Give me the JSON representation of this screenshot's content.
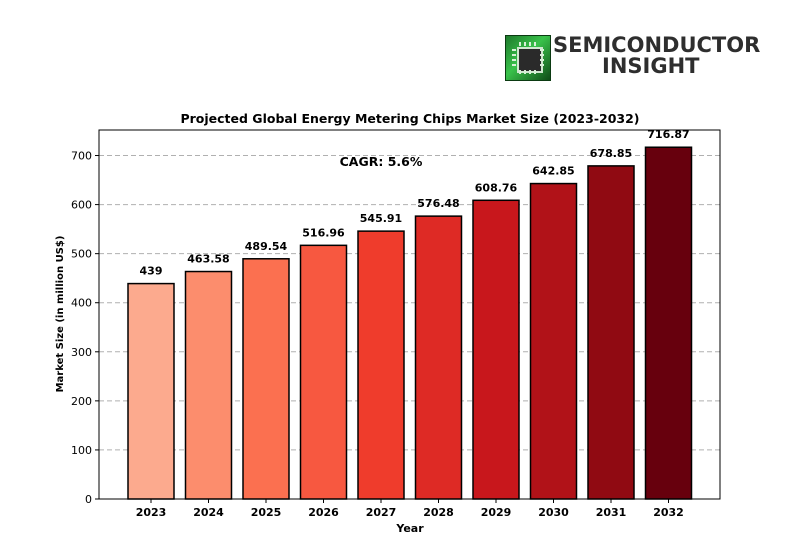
{
  "logo": {
    "icon": "microchip-icon",
    "line1": "SEMICONDUCTOR",
    "line2": "INSIGHT"
  },
  "chart_data": {
    "type": "bar",
    "title": "Projected Global Energy Metering Chips Market Size (2023-2032)",
    "xlabel": "Year",
    "ylabel": "Market Size (in million US$)",
    "annotation": "CAGR: 5.6%",
    "categories": [
      "2023",
      "2024",
      "2025",
      "2026",
      "2027",
      "2028",
      "2029",
      "2030",
      "2031",
      "2032"
    ],
    "values": [
      439,
      463.58,
      489.54,
      516.96,
      545.91,
      576.48,
      608.76,
      642.85,
      678.85,
      716.87
    ],
    "value_labels": [
      "439",
      "463.58",
      "489.54",
      "516.96",
      "545.91",
      "576.48",
      "608.76",
      "642.85",
      "678.85",
      "716.87"
    ],
    "ylim": [
      0,
      752
    ],
    "yticks": [
      0,
      100,
      200,
      300,
      400,
      500,
      600,
      700
    ],
    "grid": "y-dashed",
    "legend": "none",
    "colors": [
      "#fcaa8e",
      "#fc8d6d",
      "#fb7050",
      "#f75840",
      "#ef3c2c",
      "#de2a25",
      "#c8171c",
      "#b11218",
      "#900a12",
      "#67000d"
    ]
  }
}
